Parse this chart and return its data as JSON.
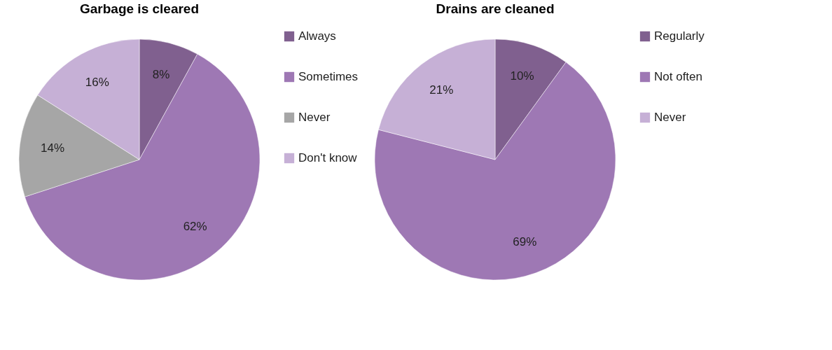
{
  "chart_data": [
    {
      "type": "pie",
      "title": "Garbage is cleared",
      "categories": [
        "Always",
        "Sometimes",
        "Never",
        "Don't know"
      ],
      "values": [
        8,
        62,
        14,
        16
      ],
      "colors": [
        "#80608f",
        "#9e78b4",
        "#a6a6a6",
        "#c6b0d6"
      ],
      "value_labels": [
        "8%",
        "62%",
        "14%",
        "16%"
      ],
      "legend": "right"
    },
    {
      "type": "pie",
      "title": "Drains are cleaned",
      "categories": [
        "Regularly",
        "Not often",
        "Never"
      ],
      "values": [
        10,
        69,
        21
      ],
      "colors": [
        "#80608f",
        "#9e78b4",
        "#c6b0d6"
      ],
      "value_labels": [
        "10%",
        "69%",
        "21%"
      ],
      "legend": "right"
    }
  ]
}
